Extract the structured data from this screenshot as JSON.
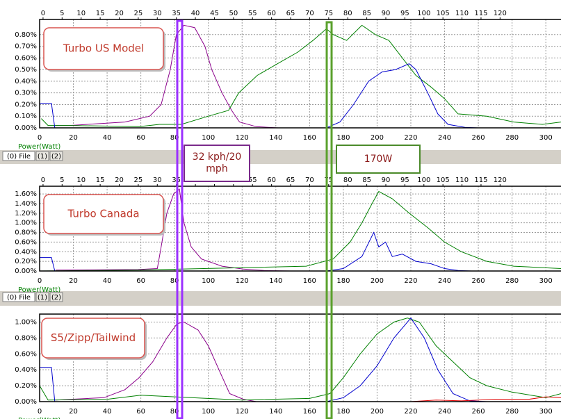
{
  "tabs": [
    "(0) File",
    "(1)",
    "(2)"
  ],
  "callouts": [
    "32 kph/20 mph",
    "170W"
  ],
  "chart_data": [
    {
      "type": "line",
      "annotation": "Turbo US Model",
      "xlabel": "Power(Watt)",
      "xlim": [
        0,
        309
      ],
      "xticks": [
        0,
        20,
        40,
        60,
        80,
        100,
        120,
        140,
        160,
        180,
        200,
        220,
        240,
        260,
        280,
        300
      ],
      "x2lim": [
        -0.9,
        136
      ],
      "x2ticks": [
        0,
        5,
        10,
        15,
        20,
        25,
        30,
        35,
        40,
        45,
        50,
        55,
        60,
        65,
        70,
        75,
        80,
        85,
        90,
        95,
        100,
        105,
        110,
        115,
        120
      ],
      "ylim": [
        0,
        0.93
      ],
      "yticks": [
        {
          "value": 0,
          "label": "0.00%"
        },
        {
          "value": 0.1,
          "label": "0.10%"
        },
        {
          "value": 0.2,
          "label": "0.20%"
        },
        {
          "value": 0.3,
          "label": "0.30%"
        },
        {
          "value": 0.4,
          "label": "0.40%"
        },
        {
          "value": 0.5,
          "label": "0.50%"
        },
        {
          "value": 0.6,
          "label": "0.60%"
        },
        {
          "value": 0.7,
          "label": "0.70%"
        },
        {
          "value": 0.8,
          "label": "0.80%"
        }
      ],
      "grid": true,
      "series": [
        {
          "color": "#8b008b",
          "axis": "x2",
          "x": [
            3.3,
            7,
            21.5,
            28,
            31,
            33.4,
            35,
            37,
            39.8,
            42.5,
            44.3,
            47,
            49.5,
            51.6,
            56,
            61.7
          ],
          "values": [
            0.02,
            0.02,
            0.05,
            0.1,
            0.2,
            0.5,
            0.8,
            0.88,
            0.86,
            0.7,
            0.5,
            0.3,
            0.15,
            0.05,
            0.01,
            0
          ]
        },
        {
          "color": "#008000",
          "x": [
            1,
            5,
            18,
            59,
            71,
            84,
            100,
            112,
            118,
            129,
            141,
            153,
            162,
            170,
            174,
            182,
            191,
            199,
            207,
            215,
            223,
            232,
            240,
            248,
            265,
            281,
            298,
            309
          ],
          "values": [
            0.08,
            0.02,
            0.02,
            0.01,
            0.03,
            0.03,
            0.1,
            0.15,
            0.3,
            0.45,
            0.55,
            0.65,
            0.75,
            0.85,
            0.8,
            0.75,
            0.88,
            0.8,
            0.75,
            0.6,
            0.45,
            0.35,
            0.25,
            0.12,
            0.1,
            0.05,
            0.03,
            0.05
          ]
        },
        {
          "color": "#0000cd",
          "x": [
            0,
            7,
            9,
            100,
            170,
            178,
            186,
            195,
            203,
            211,
            219,
            223,
            230,
            236,
            242,
            252,
            260
          ],
          "values": [
            0.21,
            0.21,
            0,
            0,
            0,
            0.05,
            0.2,
            0.4,
            0.48,
            0.5,
            0.55,
            0.5,
            0.3,
            0.12,
            0.03,
            0.005,
            0
          ]
        }
      ]
    },
    {
      "type": "line",
      "annotation": "Turbo Canada",
      "xlabel": "Power(Watt)",
      "xlim": [
        0,
        309
      ],
      "xticks": [
        0,
        20,
        40,
        60,
        80,
        100,
        120,
        140,
        160,
        180,
        200,
        220,
        240,
        260,
        280,
        300
      ],
      "x2lim": [
        -0.9,
        136
      ],
      "x2ticks": [
        0,
        5,
        10,
        15,
        20,
        25,
        30,
        35,
        40,
        45,
        50,
        55,
        60,
        65,
        70,
        75,
        80,
        85,
        90,
        95,
        100,
        105,
        110,
        115,
        120
      ],
      "ylim": [
        0,
        1.76
      ],
      "yticks": [
        {
          "value": 0,
          "label": "0.00%"
        },
        {
          "value": 0.2,
          "label": "0.20%"
        },
        {
          "value": 0.4,
          "label": "0.40%"
        },
        {
          "value": 0.6,
          "label": "0.60%"
        },
        {
          "value": 0.8,
          "label": "0.80%"
        },
        {
          "value": 1.0,
          "label": "1.00%"
        },
        {
          "value": 1.2,
          "label": "1.20%"
        },
        {
          "value": 1.4,
          "label": "1.40%"
        },
        {
          "value": 1.6,
          "label": "1.60%"
        }
      ],
      "grid": true,
      "series": [
        {
          "color": "#8b008b",
          "axis": "x2",
          "x": [
            3.3,
            25,
            30,
            31,
            32.5,
            34.3,
            35.8,
            37,
            38.9,
            41.6,
            47,
            52.6,
            58,
            65
          ],
          "values": [
            0.02,
            0.03,
            0.05,
            0.5,
            1.2,
            1.6,
            1.7,
            1.0,
            0.5,
            0.25,
            0.1,
            0.04,
            0.01,
            0
          ]
        },
        {
          "color": "#008000",
          "x": [
            0,
            59,
            158,
            174,
            184,
            191,
            197,
            201,
            209,
            219,
            230,
            240,
            250,
            265,
            281,
            309
          ],
          "values": [
            0,
            0.02,
            0.1,
            0.25,
            0.6,
            1.0,
            1.4,
            1.65,
            1.5,
            1.2,
            0.9,
            0.6,
            0.4,
            0.2,
            0.1,
            0.05
          ]
        },
        {
          "color": "#0000cd",
          "x": [
            0,
            7,
            9,
            170,
            180,
            191,
            198,
            201,
            205,
            209,
            215,
            223,
            232,
            240,
            248,
            256
          ],
          "values": [
            0.28,
            0.28,
            0,
            0,
            0.05,
            0.3,
            0.8,
            0.5,
            0.6,
            0.3,
            0.35,
            0.2,
            0.15,
            0.05,
            0.01,
            0
          ]
        }
      ]
    },
    {
      "type": "line",
      "annotation": "S5/Zipp/Tailwind",
      "xlabel": "Power(Watt)",
      "xlim": [
        0,
        309
      ],
      "xticks": [
        0,
        20,
        40,
        60,
        80,
        100,
        120,
        140,
        160,
        180,
        200,
        220,
        240,
        260,
        280,
        300
      ],
      "x2lim": [
        -0.9,
        136
      ],
      "ylim": [
        0,
        1.1
      ],
      "yticks": [
        {
          "value": 0,
          "label": "0.00%"
        },
        {
          "value": 0.2,
          "label": "0.20%"
        },
        {
          "value": 0.4,
          "label": "0.40%"
        },
        {
          "value": 0.6,
          "label": "0.60%"
        },
        {
          "value": 0.8,
          "label": "0.80%"
        },
        {
          "value": 1.0,
          "label": "1.00%"
        }
      ],
      "grid": true,
      "series": [
        {
          "color": "#8b008b",
          "axis": "x2",
          "x": [
            3.3,
            16,
            21.5,
            25.2,
            28.8,
            32.5,
            35.2,
            37,
            40.7,
            43.4,
            46.2,
            49,
            52.6,
            56
          ],
          "values": [
            0.02,
            0.05,
            0.15,
            0.3,
            0.5,
            0.8,
            0.98,
            1.0,
            0.9,
            0.7,
            0.4,
            0.1,
            0.03,
            0
          ]
        },
        {
          "color": "#008000",
          "x": [
            0,
            5,
            40,
            60,
            80,
            120,
            160,
            172,
            180,
            190,
            200,
            210,
            218,
            225,
            235,
            245,
            255,
            265,
            280,
            300,
            309
          ],
          "values": [
            0.2,
            0.02,
            0.03,
            0.08,
            0.06,
            0.02,
            0.04,
            0.1,
            0.3,
            0.6,
            0.85,
            1.0,
            1.05,
            1.0,
            0.7,
            0.5,
            0.3,
            0.2,
            0.12,
            0.05,
            0.1
          ]
        },
        {
          "color": "#0000cd",
          "x": [
            0,
            7,
            9,
            170,
            180,
            190,
            200,
            210,
            220,
            228,
            236,
            245,
            255,
            265
          ],
          "values": [
            0.43,
            0.43,
            0,
            0,
            0.05,
            0.2,
            0.45,
            0.8,
            1.05,
            0.8,
            0.4,
            0.1,
            0.01,
            0
          ]
        },
        {
          "color": "#e00000",
          "x": [
            220,
            235,
            250,
            270,
            290,
            300,
            309
          ],
          "values": [
            0,
            0.02,
            0.01,
            0.03,
            0.03,
            0.06,
            0.05
          ]
        }
      ]
    }
  ]
}
